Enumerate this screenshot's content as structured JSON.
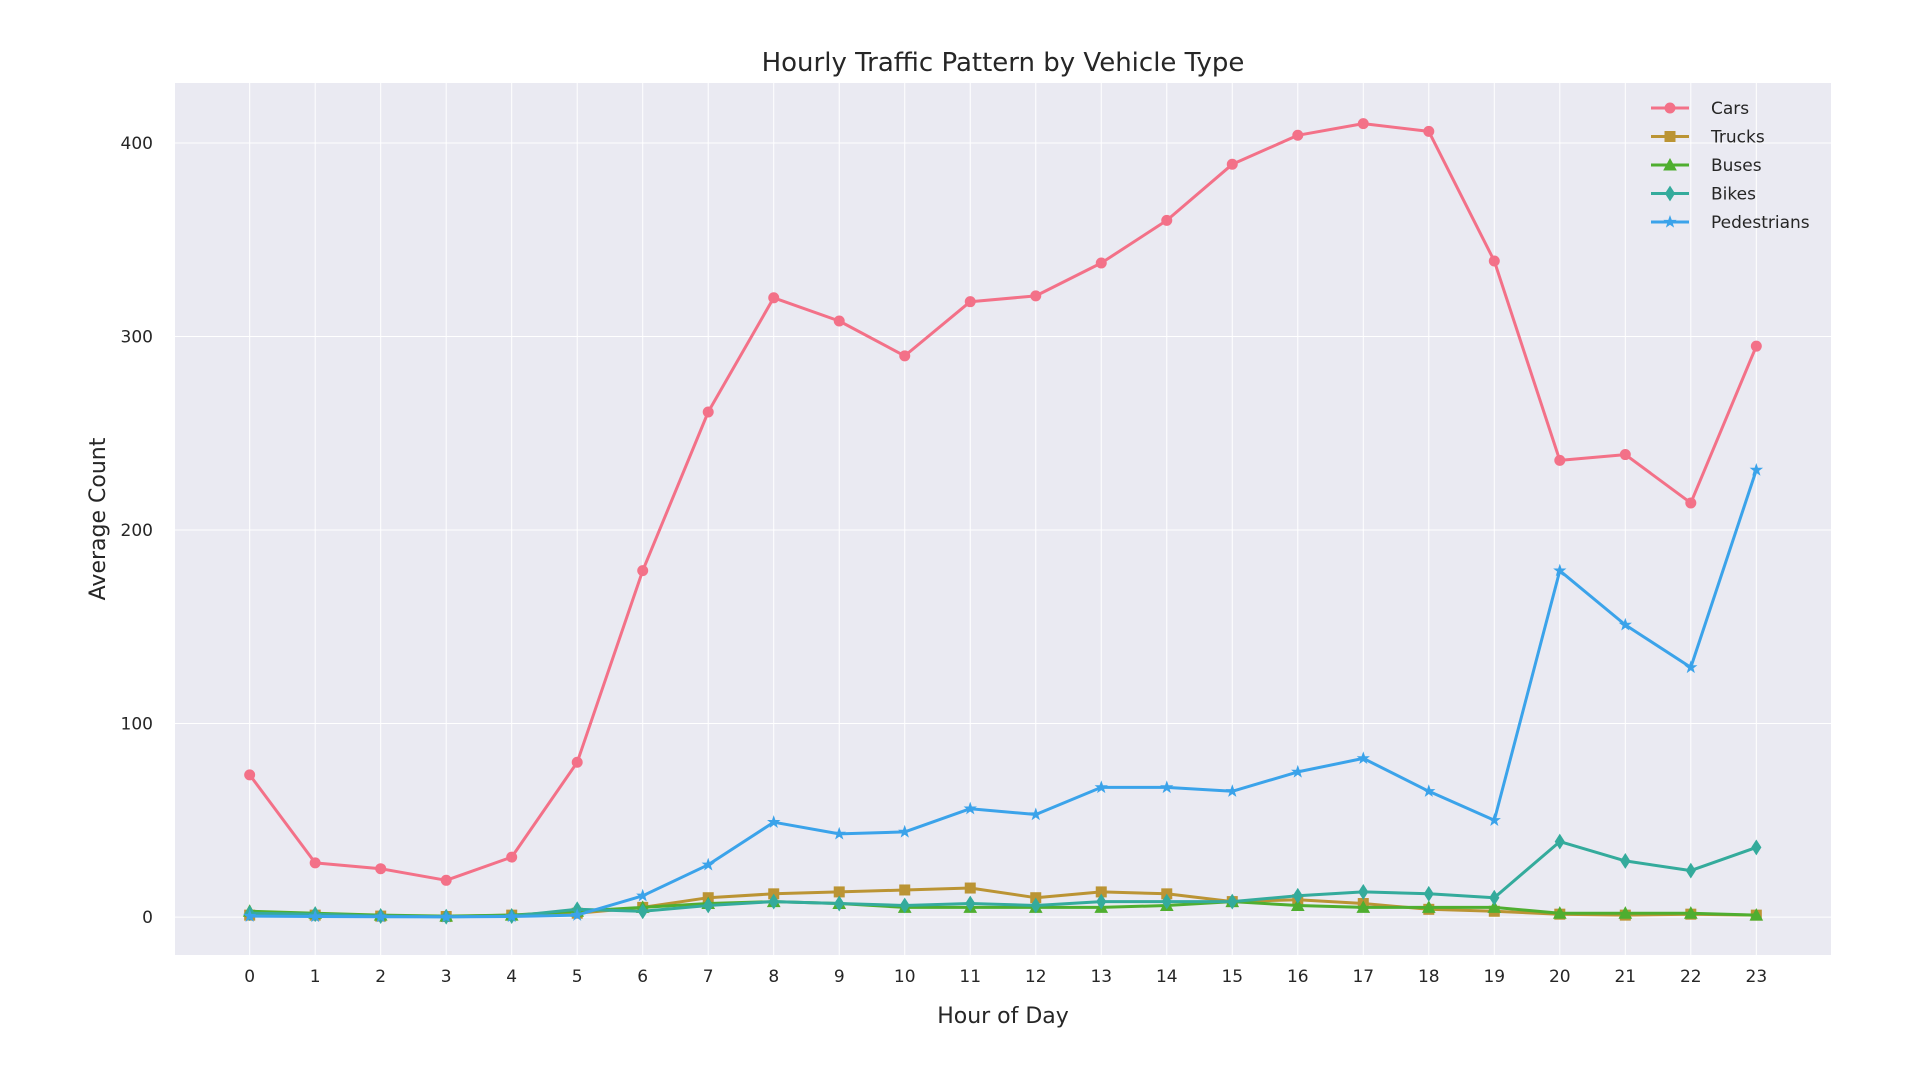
{
  "chart_data": {
    "type": "line",
    "title": "Hourly Traffic Pattern by Vehicle Type",
    "xlabel": "Hour of Day",
    "ylabel": "Average Count",
    "x": [
      0,
      1,
      2,
      3,
      4,
      5,
      6,
      7,
      8,
      9,
      10,
      11,
      12,
      13,
      14,
      15,
      16,
      17,
      18,
      19,
      20,
      21,
      22,
      23
    ],
    "xticks": [
      "0",
      "1",
      "2",
      "3",
      "4",
      "5",
      "6",
      "7",
      "8",
      "9",
      "10",
      "11",
      "12",
      "13",
      "14",
      "15",
      "16",
      "17",
      "18",
      "19",
      "20",
      "21",
      "22",
      "23"
    ],
    "yticks": [
      0,
      100,
      200,
      300,
      400
    ],
    "ytick_labels": [
      "0",
      "100",
      "200",
      "300",
      "400"
    ],
    "xlim": [
      -1.14,
      24.14
    ],
    "ylim": [
      -19.6,
      431
    ],
    "grid": true,
    "legend_position": "top-right",
    "series": [
      {
        "name": "Cars",
        "color": "#f37188",
        "marker": "circle",
        "values": [
          73.5,
          28,
          25,
          19,
          31,
          80,
          179,
          261,
          320,
          308,
          290,
          318,
          321,
          338,
          360,
          389,
          404,
          410,
          406,
          339,
          236,
          239,
          214,
          295
        ]
      },
      {
        "name": "Trucks",
        "color": "#bb9434",
        "marker": "square",
        "values": [
          1,
          1,
          0.5,
          0.3,
          1,
          2,
          5,
          10,
          12,
          13,
          14,
          15,
          10,
          13,
          12,
          8,
          9,
          7,
          4,
          3,
          1.5,
          1,
          1.5,
          1
        ]
      },
      {
        "name": "Buses",
        "color": "#4fae30",
        "marker": "triangle",
        "values": [
          3,
          2,
          1,
          0.5,
          1,
          3,
          5,
          7,
          8,
          7,
          5,
          5,
          5,
          5,
          6,
          8,
          6,
          5,
          5,
          5,
          2,
          2,
          2,
          1
        ]
      },
      {
        "name": "Bikes",
        "color": "#34ab9c",
        "marker": "diamond",
        "values": [
          2,
          1.5,
          0.5,
          0.2,
          0.5,
          4,
          3,
          6,
          8,
          7,
          6,
          7,
          6,
          8,
          8,
          8,
          11,
          13,
          12,
          10,
          39,
          29,
          24,
          36
        ]
      },
      {
        "name": "Pedestrians",
        "color": "#3ba3ea",
        "marker": "star",
        "values": [
          0.5,
          0.3,
          0.2,
          0.1,
          0.3,
          1,
          11,
          27,
          49,
          43,
          44,
          56,
          53,
          67,
          67,
          65,
          75,
          82,
          65,
          50,
          179,
          151,
          129,
          231
        ]
      }
    ]
  }
}
